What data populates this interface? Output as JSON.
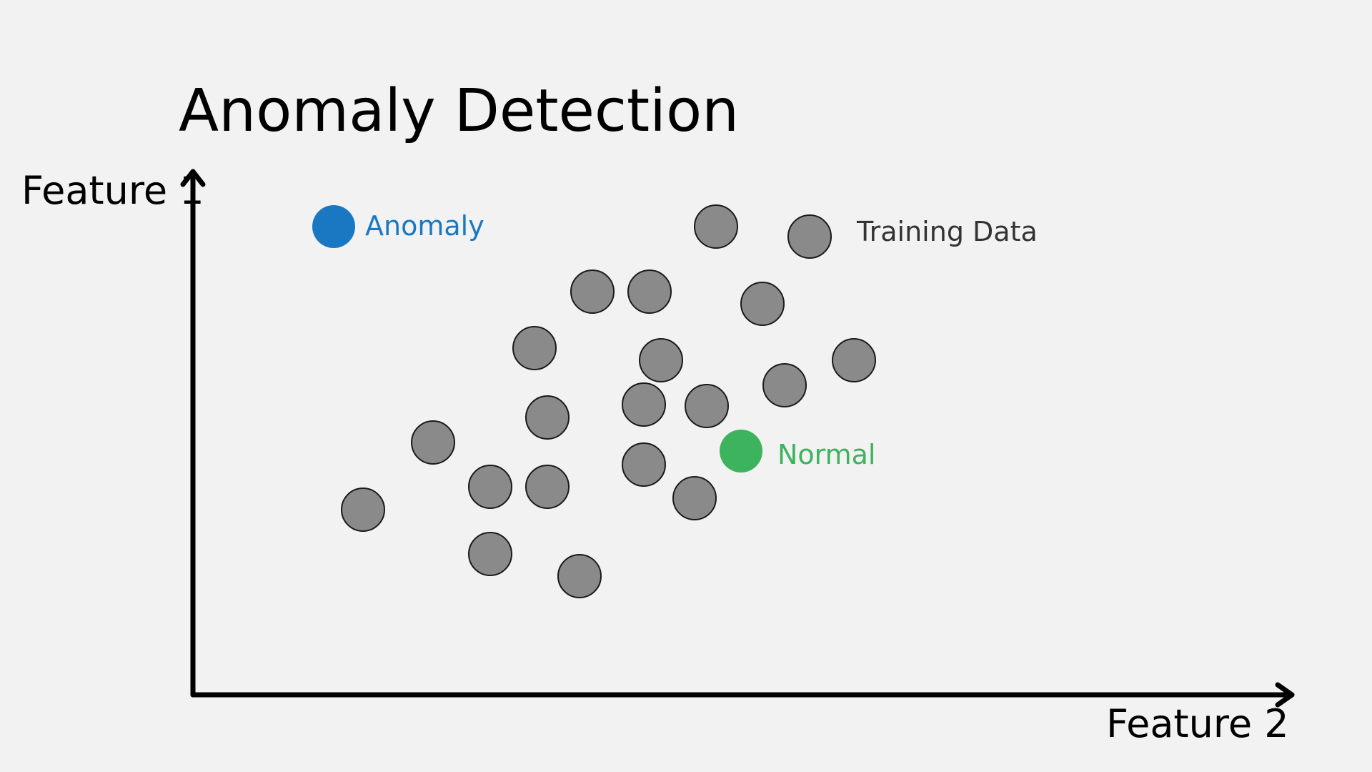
{
  "title": "Anomaly Detection",
  "y_axis_label": "Feature 1",
  "x_axis_label": "Feature 2",
  "labels": {
    "anomaly": "Anomaly",
    "normal": "Normal",
    "training": "Training Data"
  },
  "colors": {
    "background": "#f2f2f2",
    "training": "#8a8a8a",
    "training_stroke": "#1a1a1a",
    "anomaly": "#1a78c2",
    "normal": "#3cb35c",
    "axis": "#000000",
    "training_label": "#333333"
  }
}
